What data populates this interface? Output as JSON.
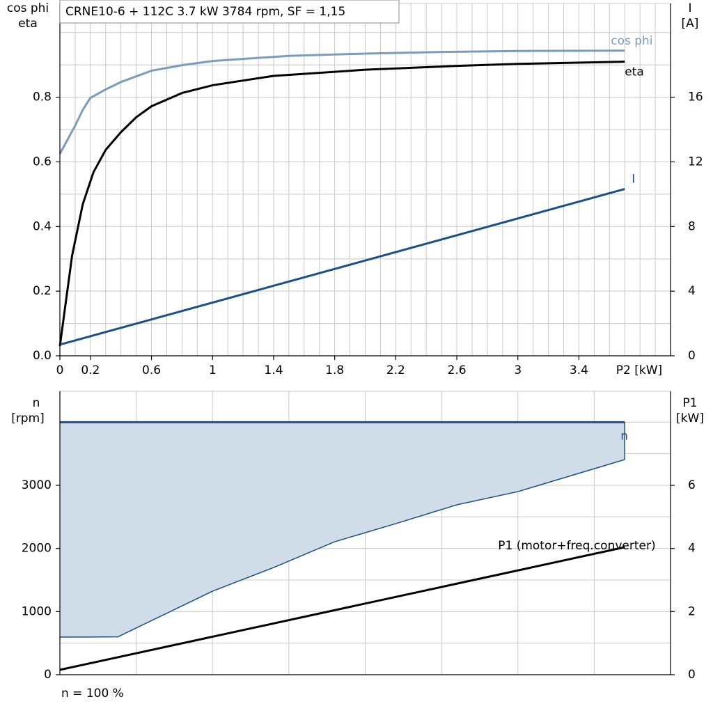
{
  "chart_data": [
    {
      "type": "line",
      "title": "CRNE10-6 + 112C   3.7 kW   3784 rpm, SF = 1,15",
      "ylabel": [
        "cos phi",
        "eta"
      ],
      "y2label": [
        "I",
        "[A]"
      ],
      "xlabel": "P2 [kW]",
      "xlim": [
        0,
        4
      ],
      "ylim": [
        0,
        1.09
      ],
      "y2lim": [
        0,
        21.8
      ],
      "xticks": [
        0,
        0.2,
        0.6,
        1.0,
        1.4,
        1.8,
        2.2,
        2.6,
        3.0,
        3.4
      ],
      "yticks": [
        {
          "value": 0,
          "label": "0.0"
        },
        0.2,
        0.4,
        0.6,
        0.8
      ],
      "y2ticks": [
        0,
        4,
        8,
        12,
        16
      ],
      "grid": true,
      "grid_step": {
        "x": 0.1,
        "y": 0.1
      },
      "series": [
        {
          "name": "cos phi",
          "color": "#7b9bbd",
          "x": [
            0,
            0.1,
            0.15,
            0.2,
            0.3,
            0.4,
            0.6,
            0.8,
            1.0,
            1.5,
            2.0,
            2.5,
            3.0,
            3.7
          ],
          "values": [
            0.625,
            0.712,
            0.761,
            0.798,
            0.824,
            0.847,
            0.882,
            0.899,
            0.912,
            0.928,
            0.935,
            0.94,
            0.943,
            0.944
          ]
        },
        {
          "name": "eta",
          "color": "#000000",
          "x": [
            0,
            0.08,
            0.15,
            0.22,
            0.3,
            0.4,
            0.5,
            0.6,
            0.8,
            1.0,
            1.4,
            2.0,
            2.6,
            3.0,
            3.7
          ],
          "values": [
            0.03,
            0.31,
            0.469,
            0.568,
            0.637,
            0.692,
            0.738,
            0.772,
            0.813,
            0.837,
            0.866,
            0.885,
            0.897,
            0.903,
            0.91
          ]
        },
        {
          "name": "I",
          "color": "#1b4f87",
          "axis": "y2",
          "x": [
            0,
            3.7
          ],
          "values": [
            0.69,
            10.32
          ]
        }
      ]
    },
    {
      "type": "area",
      "ylabel": [
        "n",
        "[rpm]"
      ],
      "y2label": [
        "P1",
        "[kW]"
      ],
      "footnote": "n = 100 %",
      "xlim": [
        0,
        4
      ],
      "ylim": [
        0,
        4489
      ],
      "y2lim": [
        0,
        8.98
      ],
      "yticks": [
        0,
        1000,
        2000,
        3000
      ],
      "y2ticks": [
        0,
        2,
        4,
        6
      ],
      "grid": true,
      "grid_step": {
        "x": 0.5,
        "y": 500
      },
      "series": [
        {
          "name": "n",
          "color": "#1b4f87",
          "fill": "#d1dce9",
          "x": [
            0,
            0.38,
            1.0,
            1.4,
            1.8,
            2.2,
            2.6,
            3.0,
            3.7
          ],
          "values": [
            4000,
            4000,
            4000,
            4000,
            4000,
            4000,
            4000,
            4000,
            4000
          ],
          "lower": [
            595,
            600,
            1323,
            1698,
            2106,
            2393,
            2691,
            2900,
            3408
          ]
        },
        {
          "name": "P1 (motor+freq.converter)",
          "color": "#000000",
          "axis": "y2",
          "x": [
            0,
            3.7
          ],
          "values": [
            0.154,
            4.04
          ]
        }
      ]
    }
  ]
}
